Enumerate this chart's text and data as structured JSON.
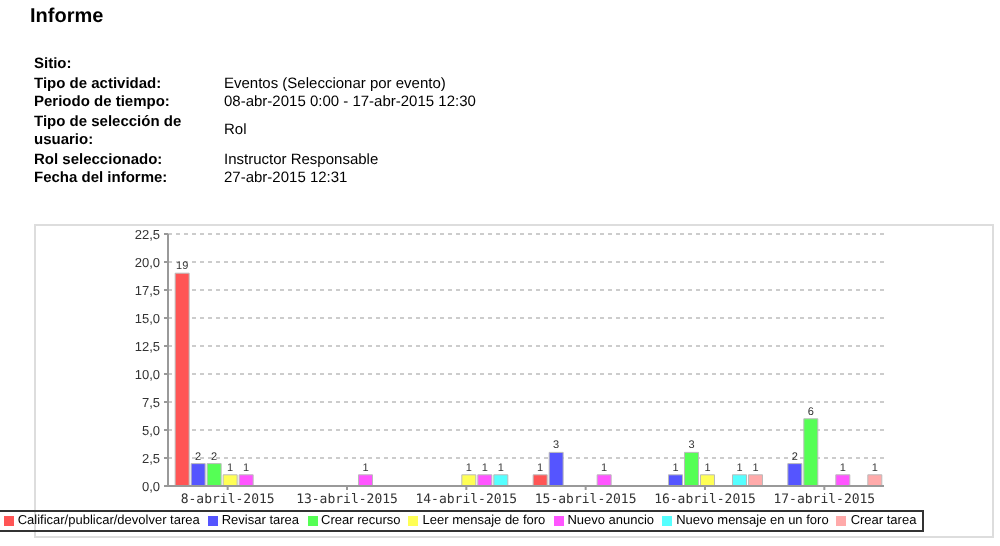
{
  "chart_data": {
    "type": "bar",
    "title": "Informe",
    "annotations": [
      "Sitio:",
      "Tipo de actividad:",
      "Eventos (Seleccionar por evento)",
      "Periodo de tiempo:",
      "08-abr-2015 0:00 - 17-abr-2015 12:30",
      "Tipo de selección de usuario:",
      "Rol",
      "Rol seleccionado:",
      "Instructor Responsable",
      "Fecha del informe:",
      "27-abr-2015 12:31"
    ],
    "categories": [
      "8-abril-2015",
      "13-abril-2015",
      "14-abril-2015",
      "15-abril-2015",
      "16-abril-2015",
      "17-abril-2015"
    ],
    "series": [
      {
        "name": "Calificar/publicar/devolver tarea",
        "color": "#ff5555",
        "values": [
          19,
          null,
          null,
          1,
          null,
          null
        ]
      },
      {
        "name": "Revisar tarea",
        "color": "#5555ff",
        "values": [
          2,
          null,
          null,
          3,
          1,
          2
        ]
      },
      {
        "name": "Crear recurso",
        "color": "#55ff55",
        "values": [
          2,
          null,
          null,
          null,
          3,
          6
        ]
      },
      {
        "name": "Leer mensaje de foro",
        "color": "#ffff55",
        "values": [
          1,
          null,
          1,
          null,
          1,
          null
        ]
      },
      {
        "name": "Nuevo anuncio",
        "color": "#ff55ff",
        "values": [
          1,
          1,
          1,
          1,
          null,
          1
        ]
      },
      {
        "name": "Nuevo mensaje en un foro",
        "color": "#55ffff",
        "values": [
          null,
          null,
          1,
          null,
          1,
          null
        ]
      },
      {
        "name": "Crear tarea",
        "color": "#ffaaaa",
        "values": [
          null,
          null,
          null,
          null,
          1,
          1
        ]
      }
    ],
    "ylim": [
      0,
      22.5
    ],
    "yticks": [
      {
        "value": 0,
        "label": "0,0"
      },
      {
        "value": 2.5,
        "label": "2,5"
      },
      {
        "value": 5,
        "label": "5,0"
      },
      {
        "value": 7.5,
        "label": "7,5"
      },
      {
        "value": 10,
        "label": "10,0"
      },
      {
        "value": 12.5,
        "label": "12,5"
      },
      {
        "value": 15,
        "label": "15,0"
      },
      {
        "value": 17.5,
        "label": "17,5"
      },
      {
        "value": 20,
        "label": "20,0"
      },
      {
        "value": 22.5,
        "label": "22,5"
      }
    ],
    "grid": "y",
    "data_labels": true,
    "legend": "bottom"
  }
}
